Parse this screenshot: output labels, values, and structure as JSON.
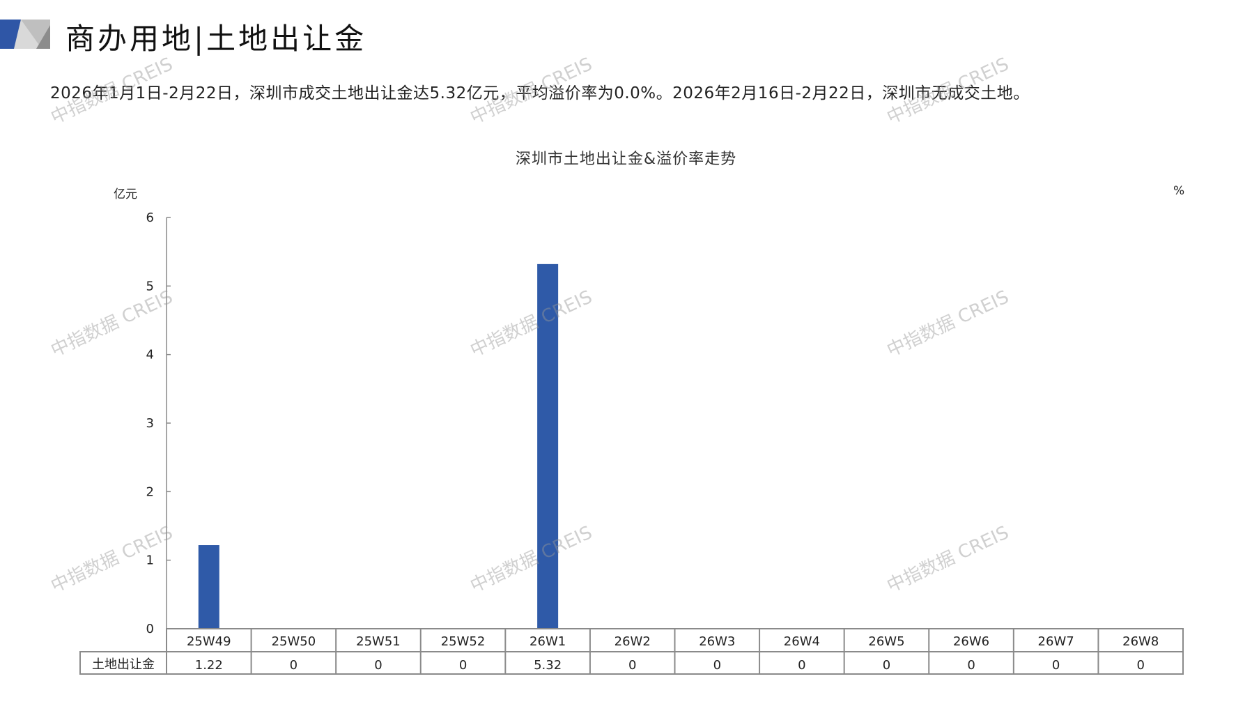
{
  "header": {
    "title": "商办用地|土地出让金",
    "logo_colors": [
      "#2f56a6",
      "#d9d9d9",
      "#a6a6a6"
    ]
  },
  "summary": "2026年1月1日-2月22日，深圳市成交土地出让金达5.32亿元，平均溢价率为0.0%。2026年2月16日-2月22日，深圳市无成交土地。",
  "watermark": "中指数据 CREIS",
  "chart_data": {
    "type": "bar",
    "title": "深圳市土地出让金&溢价率走势",
    "ylabel": "亿元",
    "y2label": "%",
    "ylim": [
      0,
      6
    ],
    "yticks": [
      "0",
      "1",
      "2",
      "3",
      "4",
      "5",
      "6"
    ],
    "categories": [
      "25W49",
      "25W50",
      "25W51",
      "25W52",
      "26W1",
      "26W2",
      "26W3",
      "26W4",
      "26W5",
      "26W6",
      "26W7",
      "26W8"
    ],
    "series": [
      {
        "name": "土地出让金",
        "values": [
          1.22,
          0,
          0,
          0,
          5.32,
          0,
          0,
          0,
          0,
          0,
          0,
          0
        ],
        "labels": [
          "1.22",
          "0",
          "0",
          "0",
          "5.32",
          "0",
          "0",
          "0",
          "0",
          "0",
          "0",
          "0"
        ],
        "color": "#2f5aa8"
      }
    ],
    "grid": false,
    "data_table": true
  }
}
